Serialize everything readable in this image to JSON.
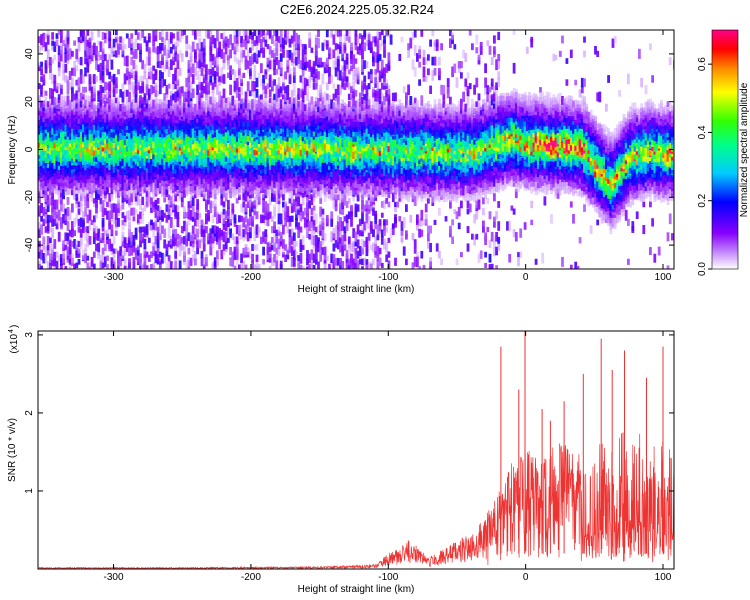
{
  "title": "C2E6.2024.225.05.32.R24",
  "chart_data": [
    {
      "type": "heatmap",
      "xlabel": "Height of straight line (km)",
      "ylabel": "Frequency (Hz)",
      "xlim": [
        -355,
        108
      ],
      "ylim": [
        -50,
        50
      ],
      "xticks": [
        -300,
        -200,
        -100,
        0,
        100
      ],
      "yticks": [
        -40,
        -20,
        0,
        20,
        40
      ],
      "colorbar": {
        "label": "Normalized spectral amplitude",
        "range": [
          0.0,
          0.7
        ],
        "ticks": [
          0.0,
          0.2,
          0.4,
          0.6
        ],
        "colors": [
          "#ffffff",
          "#cc99ff",
          "#8800ff",
          "#0000ff",
          "#00ccff",
          "#00ff88",
          "#33ff00",
          "#ffff00",
          "#ff8800",
          "#ff0000",
          "#ff0088"
        ]
      },
      "band_center": [
        {
          "x": -355,
          "y": 1
        },
        {
          "x": -300,
          "y": 1
        },
        {
          "x": -200,
          "y": 1
        },
        {
          "x": -100,
          "y": 0
        },
        {
          "x": -40,
          "y": -1
        },
        {
          "x": -10,
          "y": 5
        },
        {
          "x": 0,
          "y": 3
        },
        {
          "x": 20,
          "y": 2
        },
        {
          "x": 40,
          "y": 1
        },
        {
          "x": 55,
          "y": -10
        },
        {
          "x": 62,
          "y": -14
        },
        {
          "x": 75,
          "y": -3
        },
        {
          "x": 90,
          "y": 0
        },
        {
          "x": 108,
          "y": -2
        }
      ],
      "peak_amplitude": {
        "x": 25,
        "y": 2,
        "value": 0.7
      }
    },
    {
      "type": "line",
      "xlabel": "Height of straight line (km)",
      "ylabel": "SNR (10 * v/v)",
      "multiplier": "(x10",
      "multiplier_exp": "4",
      "xlim": [
        -355,
        108
      ],
      "ylim": [
        0,
        3.05
      ],
      "xticks": [
        -300,
        -200,
        -100,
        0,
        100
      ],
      "yticks": [
        1,
        2,
        3
      ],
      "color": "#ee3333",
      "envelope": [
        {
          "x": -355,
          "y": 0.02
        },
        {
          "x": -250,
          "y": 0.02
        },
        {
          "x": -150,
          "y": 0.03
        },
        {
          "x": -110,
          "y": 0.06
        },
        {
          "x": -100,
          "y": 0.2
        },
        {
          "x": -85,
          "y": 0.38
        },
        {
          "x": -70,
          "y": 0.15
        },
        {
          "x": -50,
          "y": 0.38
        },
        {
          "x": -40,
          "y": 0.45
        },
        {
          "x": -30,
          "y": 0.65
        },
        {
          "x": -20,
          "y": 1.05
        },
        {
          "x": -10,
          "y": 1.4
        },
        {
          "x": 0,
          "y": 1.55
        },
        {
          "x": 10,
          "y": 1.4
        },
        {
          "x": 25,
          "y": 1.65
        },
        {
          "x": 45,
          "y": 1.4
        },
        {
          "x": 60,
          "y": 1.8
        },
        {
          "x": 80,
          "y": 1.8
        },
        {
          "x": 108,
          "y": 1.6
        }
      ],
      "spikes": [
        {
          "x": -18,
          "y": 2.85
        },
        {
          "x": -5,
          "y": 2.3
        },
        {
          "x": -0.5,
          "y": 3.05
        },
        {
          "x": 12,
          "y": 2.05
        },
        {
          "x": 18,
          "y": 1.9
        },
        {
          "x": 28,
          "y": 2.15
        },
        {
          "x": 42,
          "y": 2.5
        },
        {
          "x": 55,
          "y": 2.95
        },
        {
          "x": 63,
          "y": 2.55
        },
        {
          "x": 72,
          "y": 2.8
        },
        {
          "x": 88,
          "y": 2.45
        },
        {
          "x": 100,
          "y": 2.85
        }
      ]
    }
  ]
}
